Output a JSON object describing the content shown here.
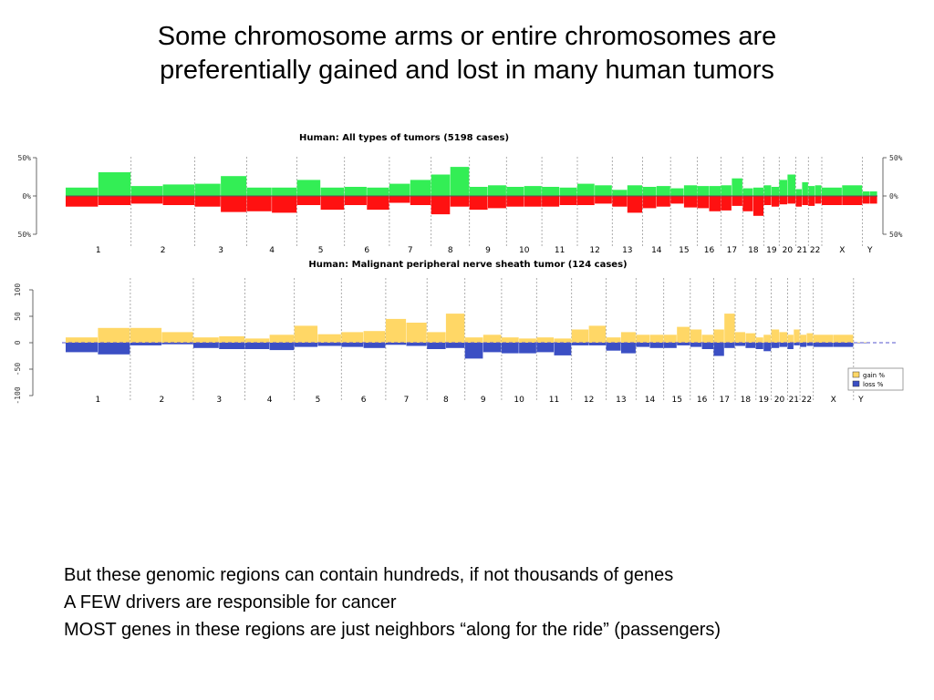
{
  "slide": {
    "title_line1": "Some chromosome arms or entire chromosomes are",
    "title_line2": "preferentially gained and lost in many human tumors",
    "bullets": [
      "But these genomic regions can contain hundreds, if not thousands of genes",
      "A FEW drivers are responsible for cancer",
      "MOST genes in these regions are just neighbors “along for the ride” (passengers)"
    ]
  },
  "chart_data": [
    {
      "type": "area",
      "title": "Human: All types of tumors (5198 cases)",
      "y_tick_labels": [
        "50%",
        "0%",
        "50%"
      ],
      "ylim": [
        -50,
        50
      ],
      "categories": [
        "1",
        "2",
        "3",
        "4",
        "5",
        "6",
        "7",
        "8",
        "9",
        "10",
        "11",
        "12",
        "13",
        "14",
        "15",
        "16",
        "17",
        "18",
        "19",
        "20",
        "21",
        "22",
        "X",
        "Y"
      ],
      "series": [
        {
          "key": "gain",
          "color": "#33ee55",
          "values": [
            [
              5,
              25
            ],
            [
              7,
              9
            ],
            [
              10,
              20
            ],
            [
              5,
              5
            ],
            [
              15,
              5
            ],
            [
              6,
              5
            ],
            [
              10,
              15
            ],
            [
              22,
              32
            ],
            [
              6,
              8
            ],
            [
              6,
              7
            ],
            [
              6,
              5
            ],
            [
              10,
              8
            ],
            [
              2,
              8
            ],
            [
              6,
              7
            ],
            [
              4,
              8
            ],
            [
              7,
              7
            ],
            [
              8,
              17
            ],
            [
              4,
              5
            ],
            [
              8,
              6
            ],
            [
              15,
              22
            ],
            [
              3,
              12
            ],
            [
              7,
              8
            ],
            [
              5,
              8
            ],
            [
              0,
              0
            ]
          ]
        },
        {
          "key": "loss",
          "color": "#ff1111",
          "values": [
            [
              8,
              6
            ],
            [
              4,
              6
            ],
            [
              8,
              15
            ],
            [
              14,
              16
            ],
            [
              6,
              12
            ],
            [
              6,
              12
            ],
            [
              3,
              6
            ],
            [
              18,
              8
            ],
            [
              12,
              10
            ],
            [
              8,
              8
            ],
            [
              8,
              6
            ],
            [
              6,
              4
            ],
            [
              8,
              16
            ],
            [
              10,
              8
            ],
            [
              4,
              9
            ],
            [
              10,
              14
            ],
            [
              13,
              7
            ],
            [
              14,
              20
            ],
            [
              6,
              8
            ],
            [
              5,
              4
            ],
            [
              8,
              6
            ],
            [
              7,
              4
            ],
            [
              6,
              6
            ],
            [
              4,
              4
            ]
          ]
        }
      ]
    },
    {
      "type": "area",
      "title": "Human: Malignant peripheral nerve sheath tumor (124 cases)",
      "y_tick_labels": [
        "100",
        "50",
        "0",
        "-50",
        "-100"
      ],
      "ylim": [
        -100,
        100
      ],
      "categories": [
        "1",
        "2",
        "3",
        "4",
        "5",
        "6",
        "7",
        "8",
        "9",
        "10",
        "11",
        "12",
        "13",
        "14",
        "15",
        "16",
        "17",
        "18",
        "19",
        "20",
        "21",
        "22",
        "X",
        "Y"
      ],
      "series": [
        {
          "key": "gain",
          "name": "gain %",
          "color": "#ffd766",
          "values": [
            [
              10,
              28
            ],
            [
              28,
              20
            ],
            [
              10,
              12
            ],
            [
              8,
              15
            ],
            [
              32,
              16
            ],
            [
              20,
              22
            ],
            [
              45,
              38
            ],
            [
              20,
              55
            ],
            [
              10,
              15
            ],
            [
              10,
              8
            ],
            [
              10,
              8
            ],
            [
              25,
              32
            ],
            [
              10,
              20
            ],
            [
              15,
              15
            ],
            [
              15,
              30
            ],
            [
              25,
              15
            ],
            [
              25,
              55
            ],
            [
              20,
              18
            ],
            [
              10,
              15
            ],
            [
              25,
              20
            ],
            [
              15,
              25
            ],
            [
              15,
              18
            ],
            [
              15,
              15
            ],
            [
              0,
              0
            ]
          ]
        },
        {
          "key": "loss",
          "name": "loss %",
          "color": "#3b4fc4",
          "values": [
            [
              18,
              22
            ],
            [
              5,
              3
            ],
            [
              10,
              12
            ],
            [
              12,
              14
            ],
            [
              8,
              6
            ],
            [
              8,
              10
            ],
            [
              4,
              6
            ],
            [
              12,
              10
            ],
            [
              30,
              18
            ],
            [
              20,
              20
            ],
            [
              18,
              24
            ],
            [
              5,
              5
            ],
            [
              15,
              20
            ],
            [
              8,
              10
            ],
            [
              10,
              5
            ],
            [
              8,
              12
            ],
            [
              25,
              10
            ],
            [
              6,
              10
            ],
            [
              12,
              16
            ],
            [
              10,
              8
            ],
            [
              12,
              5
            ],
            [
              8,
              6
            ],
            [
              8,
              8
            ],
            [
              0,
              0
            ]
          ]
        }
      ]
    }
  ]
}
